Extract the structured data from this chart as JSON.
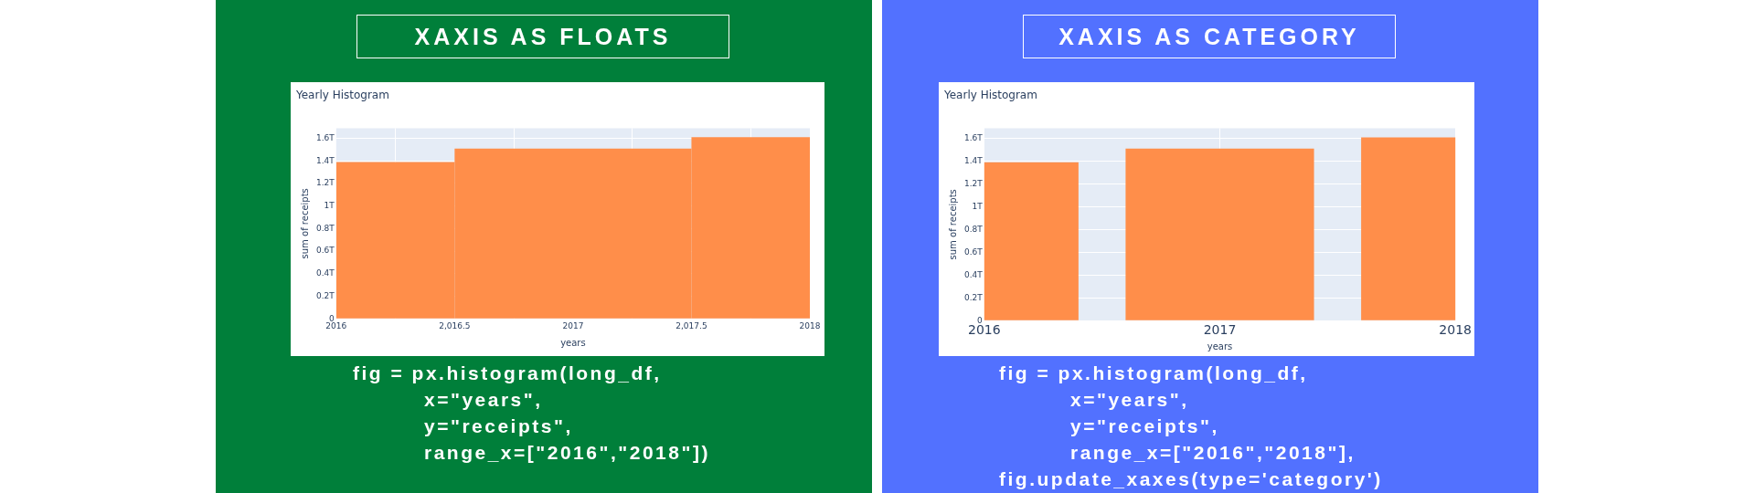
{
  "chart_data": [
    {
      "type": "histogram",
      "title": "Yearly Histogram",
      "xlabel": "years",
      "ylabel": "sum of receipts",
      "annotations": [
        "XAXIS AS FLOATS",
        "fig = px.histogram(long_df,",
        "x=\"years\",",
        "y=\"receipts\",",
        "range_x=[\"2016\",\"2018\"])"
      ],
      "bins": [
        2016,
        2016.5,
        2017.5,
        2018
      ],
      "values": [
        1390000000000,
        1510000000000,
        1610000000000
      ],
      "color": "#ff8e4a",
      "xlim": [
        2016,
        2018
      ],
      "xticks": [
        2016,
        {
          "value": 2016.5,
          "label": "2,016.5"
        },
        2017,
        {
          "value": 2017.5,
          "label": "2,017.5"
        },
        2018
      ],
      "ylim": [
        0,
        1690000000000
      ],
      "yticks": [
        0,
        {
          "value": 200000000000,
          "label": "0.2T"
        },
        {
          "value": 400000000000,
          "label": "0.4T"
        },
        {
          "value": 600000000000,
          "label": "0.6T"
        },
        {
          "value": 800000000000,
          "label": "0.8T"
        },
        {
          "value": 1000000000000,
          "label": "1T"
        },
        {
          "value": 1200000000000,
          "label": "1.2T"
        },
        {
          "value": 1400000000000,
          "label": "1.4T"
        },
        {
          "value": 1600000000000,
          "label": "1.6T"
        }
      ],
      "grid": true
    },
    {
      "type": "bar",
      "title": "Yearly Histogram",
      "xlabel": "years",
      "ylabel": "sum of receipts",
      "annotations": [
        "XAXIS AS CATEGORY",
        "fig = px.histogram(long_df,",
        "x=\"years\",",
        "y=\"receipts\",",
        "range_x=[\"2016\",\"2018\"],",
        "fig.update_xaxes(type='category')"
      ],
      "categories": [
        "2016",
        "2017",
        "2018"
      ],
      "values": [
        1390000000000,
        1510000000000,
        1610000000000
      ],
      "color": "#ff8e4a",
      "ylim": [
        0,
        1690000000000
      ],
      "yticks": [
        0,
        {
          "value": 200000000000,
          "label": "0.2T"
        },
        {
          "value": 400000000000,
          "label": "0.4T"
        },
        {
          "value": 600000000000,
          "label": "0.6T"
        },
        {
          "value": 800000000000,
          "label": "0.8T"
        },
        {
          "value": 1000000000000,
          "label": "1T"
        },
        {
          "value": 1200000000000,
          "label": "1.2T"
        },
        {
          "value": 1400000000000,
          "label": "1.4T"
        },
        {
          "value": 1600000000000,
          "label": "1.6T"
        }
      ],
      "grid": true
    }
  ]
}
